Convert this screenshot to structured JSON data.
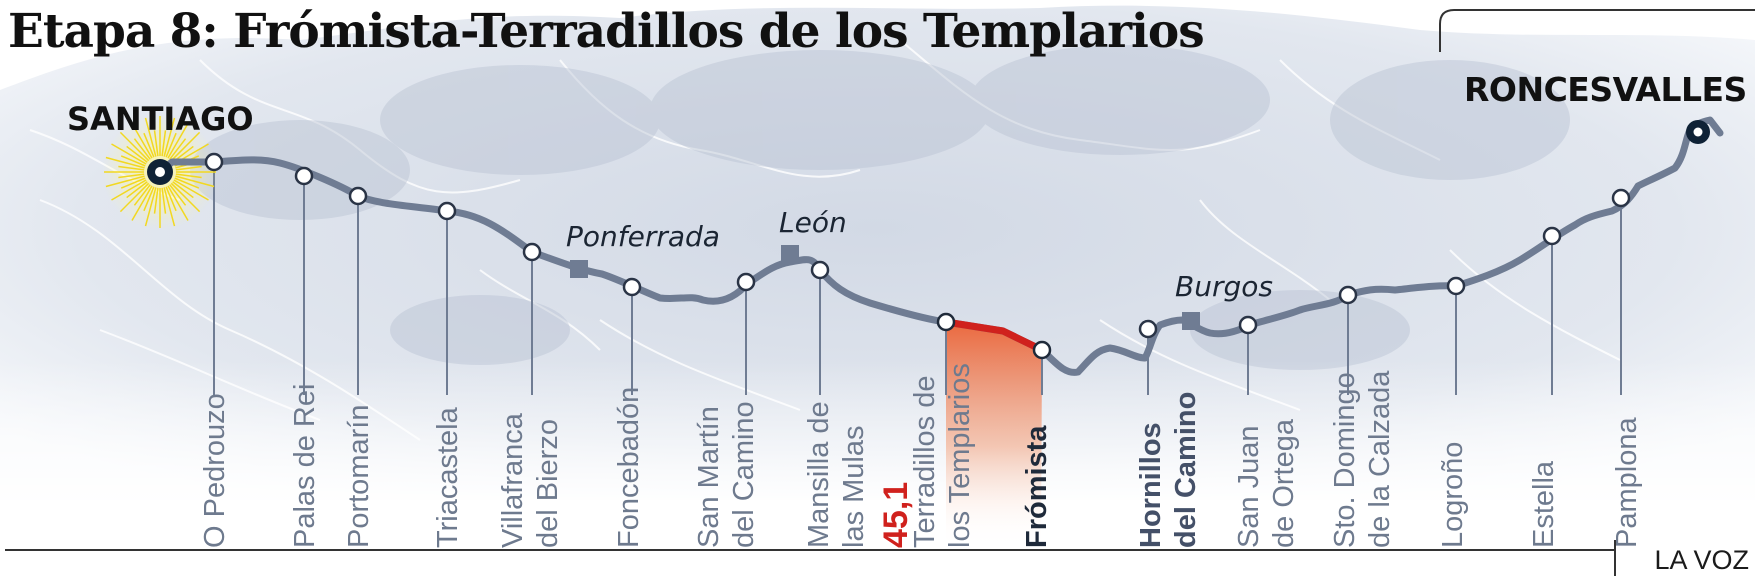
{
  "title": "Etapa 8: Frómista-Terradillos de los Templarios",
  "endpoints": {
    "start": "SANTIAGO",
    "end": "RONCESVALLES"
  },
  "cities": {
    "ponferrada": "Ponferrada",
    "leon": "León",
    "burgos": "Burgos"
  },
  "stops": [
    {
      "lines": [
        "O Pedrouzo"
      ]
    },
    {
      "lines": [
        "Palas de Rei"
      ]
    },
    {
      "lines": [
        "Portomarín"
      ]
    },
    {
      "lines": [
        "Triacastela"
      ]
    },
    {
      "lines": [
        "Villafranca",
        "del Bierzo"
      ]
    },
    {
      "lines": [
        "Foncebadón"
      ]
    },
    {
      "lines": [
        "San Martín",
        "del Camino"
      ]
    },
    {
      "lines": [
        "Mansilla de",
        "las Mulas"
      ]
    },
    {
      "lines": [
        "Terradillos de",
        "los Templarios"
      ]
    },
    {
      "lines": [
        "Frómista"
      ]
    },
    {
      "lines": [
        "Hornillos",
        "del Camino"
      ]
    },
    {
      "lines": [
        "San Juan",
        "de Ortega"
      ]
    },
    {
      "lines": [
        "Sto. Domingo",
        "de la Calzada"
      ]
    },
    {
      "lines": [
        "Logroño"
      ]
    },
    {
      "lines": [
        "Estella"
      ]
    },
    {
      "lines": [
        "Pamplona"
      ]
    }
  ],
  "stage": {
    "distance_km": "45,1"
  },
  "credit": "LA VOZ",
  "colors": {
    "route": "#6f7c93",
    "stage": "#d0211d",
    "stage_fill_top": "#ee6a3c",
    "sun": "#f2d820",
    "marker": "#0f2236"
  }
}
